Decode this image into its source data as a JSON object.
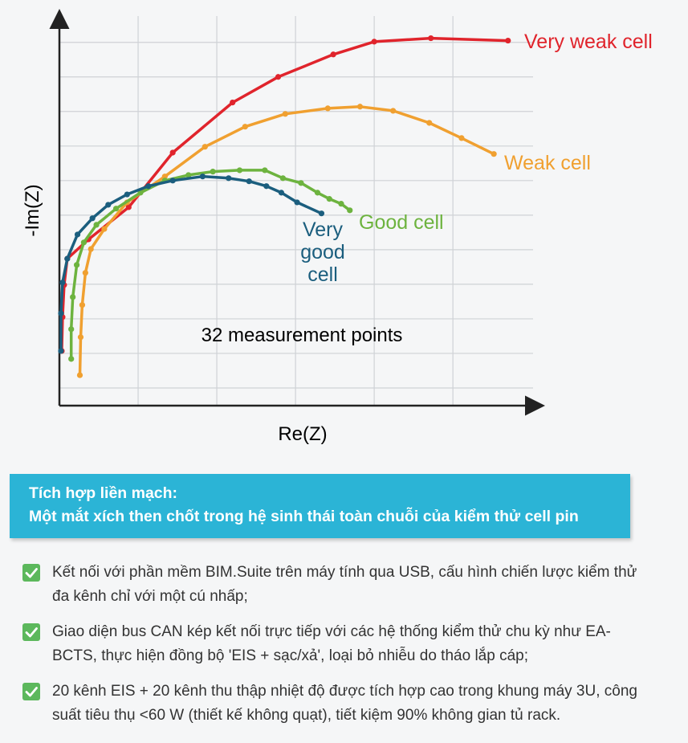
{
  "chart_data": {
    "type": "line",
    "xlabel": "Re(Z)",
    "ylabel": "-Im(Z)",
    "annotation": "32 measurement points",
    "xlim": [
      0,
      6.1
    ],
    "ylim": [
      -0.5,
      10.9
    ],
    "xticks": [
      1,
      2,
      3,
      4,
      5
    ],
    "yticks": [
      0,
      1,
      2,
      3,
      4,
      5,
      6,
      7,
      8,
      9,
      10
    ],
    "grid": true,
    "series": [
      {
        "name": "Very weak cell",
        "color": "#e0242c",
        "x": [
          0.03,
          0.04,
          0.06,
          0.1,
          0.37,
          0.88,
          1.44,
          2.2,
          2.78,
          3.48,
          4.0,
          4.72,
          5.7
        ],
        "values": [
          1.07,
          2.05,
          2.98,
          3.74,
          4.3,
          5.23,
          6.81,
          8.26,
          9.0,
          9.65,
          10.02,
          10.12,
          10.05
        ]
      },
      {
        "name": "Weak cell",
        "color": "#f0a030",
        "x": [
          0.26,
          0.27,
          0.29,
          0.33,
          0.4,
          0.57,
          0.86,
          1.34,
          1.85,
          2.36,
          2.87,
          3.41,
          3.82,
          4.24,
          4.7,
          5.11,
          5.52
        ],
        "values": [
          0.37,
          1.47,
          2.4,
          3.33,
          4.02,
          4.6,
          5.37,
          6.12,
          6.98,
          7.56,
          7.93,
          8.09,
          8.14,
          8.02,
          7.67,
          7.23,
          6.77
        ]
      },
      {
        "name": "Good cell",
        "color": "#6db33f",
        "x": [
          0.15,
          0.15,
          0.17,
          0.22,
          0.31,
          0.47,
          0.72,
          1.03,
          1.34,
          1.64,
          1.95,
          2.29,
          2.61,
          2.84,
          3.07,
          3.28,
          3.43,
          3.58,
          3.69
        ],
        "values": [
          0.84,
          1.7,
          2.63,
          3.56,
          4.21,
          4.72,
          5.19,
          5.65,
          6.0,
          6.16,
          6.26,
          6.3,
          6.3,
          6.07,
          5.93,
          5.65,
          5.47,
          5.33,
          5.14
        ]
      },
      {
        "name": "Very good cell",
        "color": "#1b5e7e",
        "x": [
          0.02,
          0.02,
          0.04,
          0.1,
          0.23,
          0.42,
          0.62,
          0.86,
          1.13,
          1.44,
          1.82,
          2.15,
          2.41,
          2.63,
          2.82,
          3.02,
          3.33
        ],
        "values": [
          1.07,
          2.16,
          3.05,
          3.74,
          4.44,
          4.91,
          5.3,
          5.6,
          5.84,
          6.0,
          6.12,
          6.07,
          5.98,
          5.84,
          5.65,
          5.37,
          5.05
        ]
      }
    ]
  },
  "banner": {
    "lines": [
      "Tích hợp liền mạch:",
      "Một mắt xích then chốt trong hệ sinh thái toàn chuỗi của kiểm thử cell pin"
    ]
  },
  "features": [
    "Kết nối với phần mềm BIM.Suite trên máy tính qua USB, cấu hình chiến lược kiểm thử đa kênh chỉ với một cú nhấp;",
    "Giao diện bus CAN kép kết nối trực tiếp với các hệ thống kiểm thử chu kỳ như EA-BCTS, thực hiện đồng bộ 'EIS + sạc/xả', loại bỏ nhiễu do tháo lắp cáp;",
    "20 kênh EIS + 20 kênh thu thập nhiệt độ được tích hợp cao trong khung máy 3U, công suất tiêu thụ <60 W (thiết kế không quạt), tiết kiệm 90% không gian tủ rack."
  ]
}
